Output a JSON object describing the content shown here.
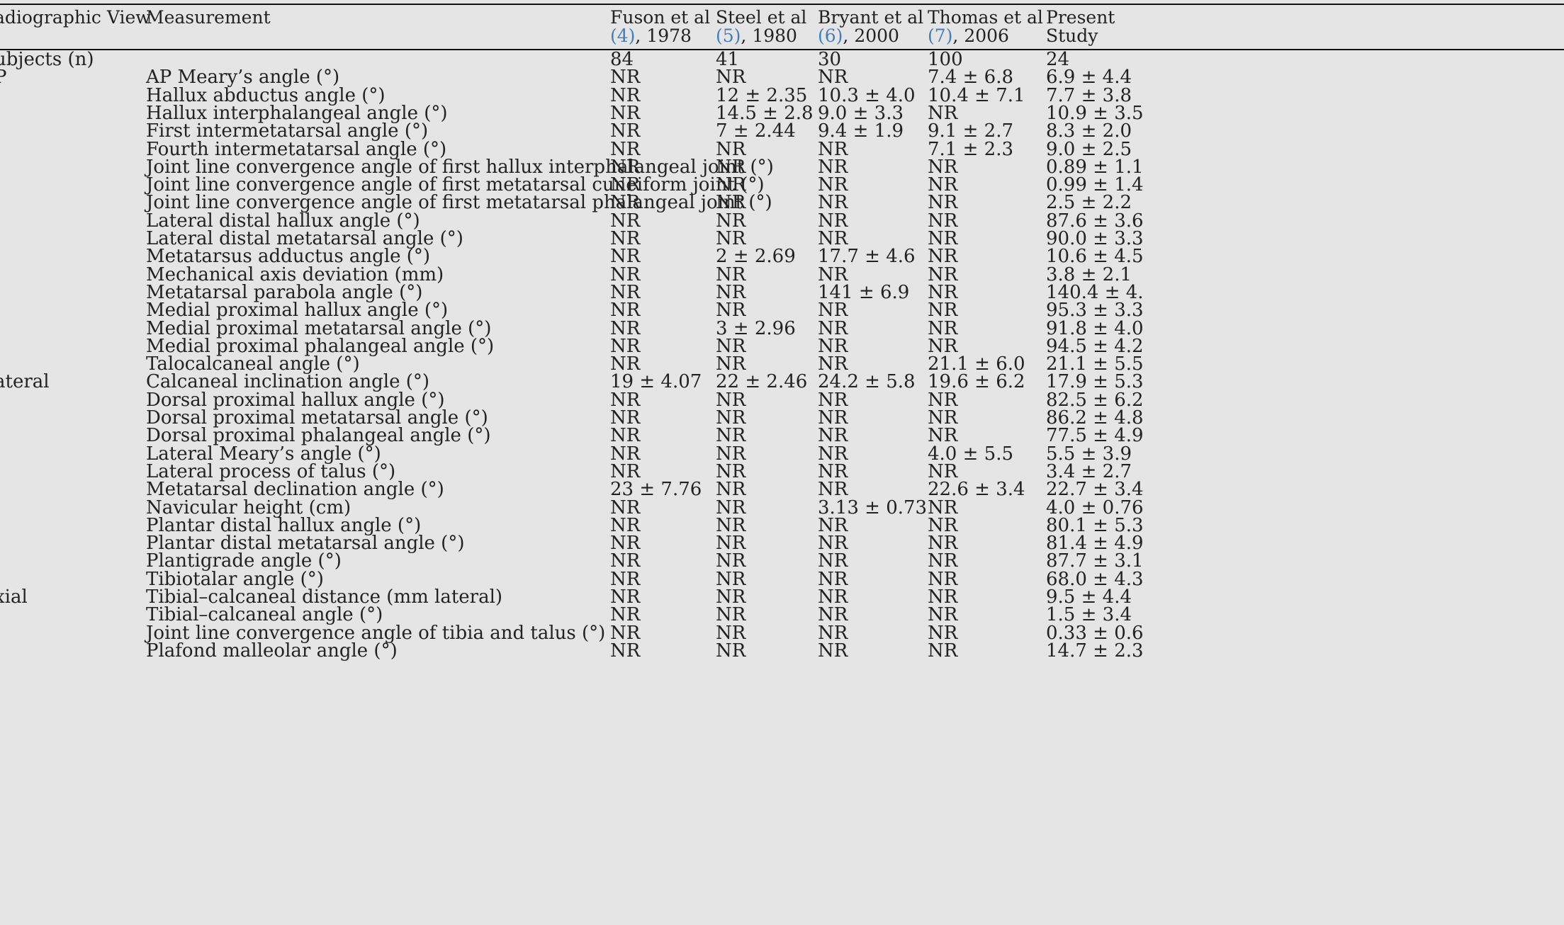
{
  "header": {
    "view": "adiographic View",
    "measurement": "Measurement",
    "studies": [
      {
        "line1": "Fuson et al",
        "ref": "(4)",
        "year": ", 1978"
      },
      {
        "line1": "Steel et al",
        "ref": "(5)",
        "year": ", 1980"
      },
      {
        "line1": "Bryant et al",
        "ref": "(6)",
        "year": ", 2000"
      },
      {
        "line1": "Thomas et al",
        "ref": "(7)",
        "year": ", 2006"
      },
      {
        "line1": "Present",
        "ref": "",
        "year": "Study"
      }
    ]
  },
  "rows": [
    {
      "view": "ubjects (n)",
      "measurement": "",
      "values": [
        "84",
        "41",
        "30",
        "100",
        "24"
      ]
    },
    {
      "view": "P",
      "measurement": "AP Meary’s angle (°)",
      "values": [
        "NR",
        "NR",
        "NR",
        "7.4 ± 6.8",
        "6.9 ± 4.4"
      ]
    },
    {
      "view": "",
      "measurement": "Hallux abductus angle (°)",
      "values": [
        "NR",
        "12 ± 2.35",
        "10.3 ± 4.0",
        "10.4 ± 7.1",
        "7.7 ± 3.8"
      ]
    },
    {
      "view": "",
      "measurement": "Hallux interphalangeal angle (°)",
      "values": [
        "NR",
        "14.5 ± 2.8",
        "9.0 ± 3.3",
        "NR",
        "10.9 ± 3.5"
      ]
    },
    {
      "view": "",
      "measurement": "First intermetatarsal angle (°)",
      "values": [
        "NR",
        "7 ± 2.44",
        "9.4 ± 1.9",
        "9.1 ± 2.7",
        "8.3 ± 2.0"
      ]
    },
    {
      "view": "",
      "measurement": "Fourth intermetatarsal angle (°)",
      "values": [
        "NR",
        "NR",
        "NR",
        "7.1 ± 2.3",
        "9.0 ± 2.5"
      ]
    },
    {
      "view": "",
      "measurement": "Joint line convergence angle of first hallux interphalangeal joint (°)",
      "values": [
        "NR",
        "NR",
        "NR",
        "NR",
        "0.89 ± 1.1"
      ]
    },
    {
      "view": "",
      "measurement": "Joint line convergence angle of first metatarsal cuneiform joint (°)",
      "values": [
        "NR",
        "NR",
        "NR",
        "NR",
        "0.99 ± 1.4"
      ]
    },
    {
      "view": "",
      "measurement": "Joint line convergence angle of first metatarsal phalangeal joint (°)",
      "values": [
        "NR",
        "NR",
        "NR",
        "NR",
        "2.5 ± 2.2"
      ]
    },
    {
      "view": "",
      "measurement": "Lateral distal hallux angle (°)",
      "values": [
        "NR",
        "NR",
        "NR",
        "NR",
        "87.6 ± 3.6"
      ]
    },
    {
      "view": "",
      "measurement": "Lateral distal metatarsal angle (°)",
      "values": [
        "NR",
        "NR",
        "NR",
        "NR",
        "90.0 ± 3.3"
      ]
    },
    {
      "view": "",
      "measurement": "Metatarsus adductus angle (°)",
      "values": [
        "NR",
        "2 ± 2.69",
        "17.7 ± 4.6",
        "NR",
        "10.6 ± 4.5"
      ]
    },
    {
      "view": "",
      "measurement": "Mechanical axis deviation (mm)",
      "values": [
        "NR",
        "NR",
        "NR",
        "NR",
        "3.8 ± 2.1"
      ]
    },
    {
      "view": "",
      "measurement": "Metatarsal parabola angle (°)",
      "values": [
        "NR",
        "NR",
        "141 ± 6.9",
        "NR",
        "140.4 ± 4."
      ]
    },
    {
      "view": "",
      "measurement": "Medial proximal hallux angle (°)",
      "values": [
        "NR",
        "NR",
        "NR",
        "NR",
        "95.3 ± 3.3"
      ]
    },
    {
      "view": "",
      "measurement": "Medial proximal metatarsal angle (°)",
      "values": [
        "NR",
        "3 ± 2.96",
        "NR",
        "NR",
        "91.8 ± 4.0"
      ]
    },
    {
      "view": "",
      "measurement": "Medial proximal phalangeal angle (°)",
      "values": [
        "NR",
        "NR",
        "NR",
        "NR",
        "94.5 ± 4.2"
      ]
    },
    {
      "view": "",
      "measurement": "Talocalcaneal angle (°)",
      "values": [
        "NR",
        "NR",
        "NR",
        "21.1 ± 6.0",
        "21.1 ± 5.5"
      ]
    },
    {
      "view": "ateral",
      "measurement": "Calcaneal inclination angle (°)",
      "values": [
        "19 ± 4.07",
        "22 ± 2.46",
        "24.2 ± 5.8",
        "19.6 ± 6.2",
        "17.9 ± 5.3"
      ]
    },
    {
      "view": "",
      "measurement": "Dorsal proximal hallux angle (°)",
      "values": [
        "NR",
        "NR",
        "NR",
        "NR",
        "82.5 ± 6.2"
      ]
    },
    {
      "view": "",
      "measurement": "Dorsal proximal metatarsal angle (°)",
      "values": [
        "NR",
        "NR",
        "NR",
        "NR",
        "86.2 ± 4.8"
      ]
    },
    {
      "view": "",
      "measurement": "Dorsal proximal phalangeal angle (°)",
      "values": [
        "NR",
        "NR",
        "NR",
        "NR",
        "77.5 ± 4.9"
      ]
    },
    {
      "view": "",
      "measurement": "Lateral Meary’s angle (°)",
      "values": [
        "NR",
        "NR",
        "NR",
        "4.0 ± 5.5",
        "5.5 ± 3.9"
      ]
    },
    {
      "view": "",
      "measurement": "Lateral process of talus (°)",
      "values": [
        "NR",
        "NR",
        "NR",
        "NR",
        "3.4 ± 2.7"
      ]
    },
    {
      "view": "",
      "measurement": "Metatarsal declination angle (°)",
      "values": [
        "23 ± 7.76",
        "NR",
        "NR",
        "22.6 ± 3.4",
        "22.7 ± 3.4"
      ]
    },
    {
      "view": "",
      "measurement": "Navicular height (cm)",
      "values": [
        "NR",
        "NR",
        "3.13 ± 0.73",
        "NR",
        "4.0 ± 0.76"
      ]
    },
    {
      "view": "",
      "measurement": "Plantar distal hallux angle (°)",
      "values": [
        "NR",
        "NR",
        "NR",
        "NR",
        "80.1 ± 5.3"
      ]
    },
    {
      "view": "",
      "measurement": "Plantar distal metatarsal angle (°)",
      "values": [
        "NR",
        "NR",
        "NR",
        "NR",
        "81.4 ± 4.9"
      ]
    },
    {
      "view": "",
      "measurement": "Plantigrade angle (°)",
      "values": [
        "NR",
        "NR",
        "NR",
        "NR",
        "87.7 ± 3.1"
      ]
    },
    {
      "view": "",
      "measurement": "Tibiotalar angle (°)",
      "values": [
        "NR",
        "NR",
        "NR",
        "NR",
        "68.0 ± 4.3"
      ]
    },
    {
      "view": "xial",
      "measurement": "Tibial–calcaneal distance (mm lateral)",
      "values": [
        "NR",
        "NR",
        "NR",
        "NR",
        "9.5 ± 4.4"
      ]
    },
    {
      "view": "",
      "measurement": "Tibial–calcaneal angle (°)",
      "values": [
        "NR",
        "NR",
        "NR",
        "NR",
        "1.5 ± 3.4"
      ]
    },
    {
      "view": "",
      "measurement": "Joint line convergence angle of tibia and talus (°)",
      "values": [
        "NR",
        "NR",
        "NR",
        "NR",
        "0.33 ± 0.6"
      ]
    },
    {
      "view": "",
      "measurement": "Plafond malleolar angle (°)",
      "values": [
        "NR",
        "NR",
        "NR",
        "NR",
        "14.7 ± 2.3"
      ]
    }
  ]
}
